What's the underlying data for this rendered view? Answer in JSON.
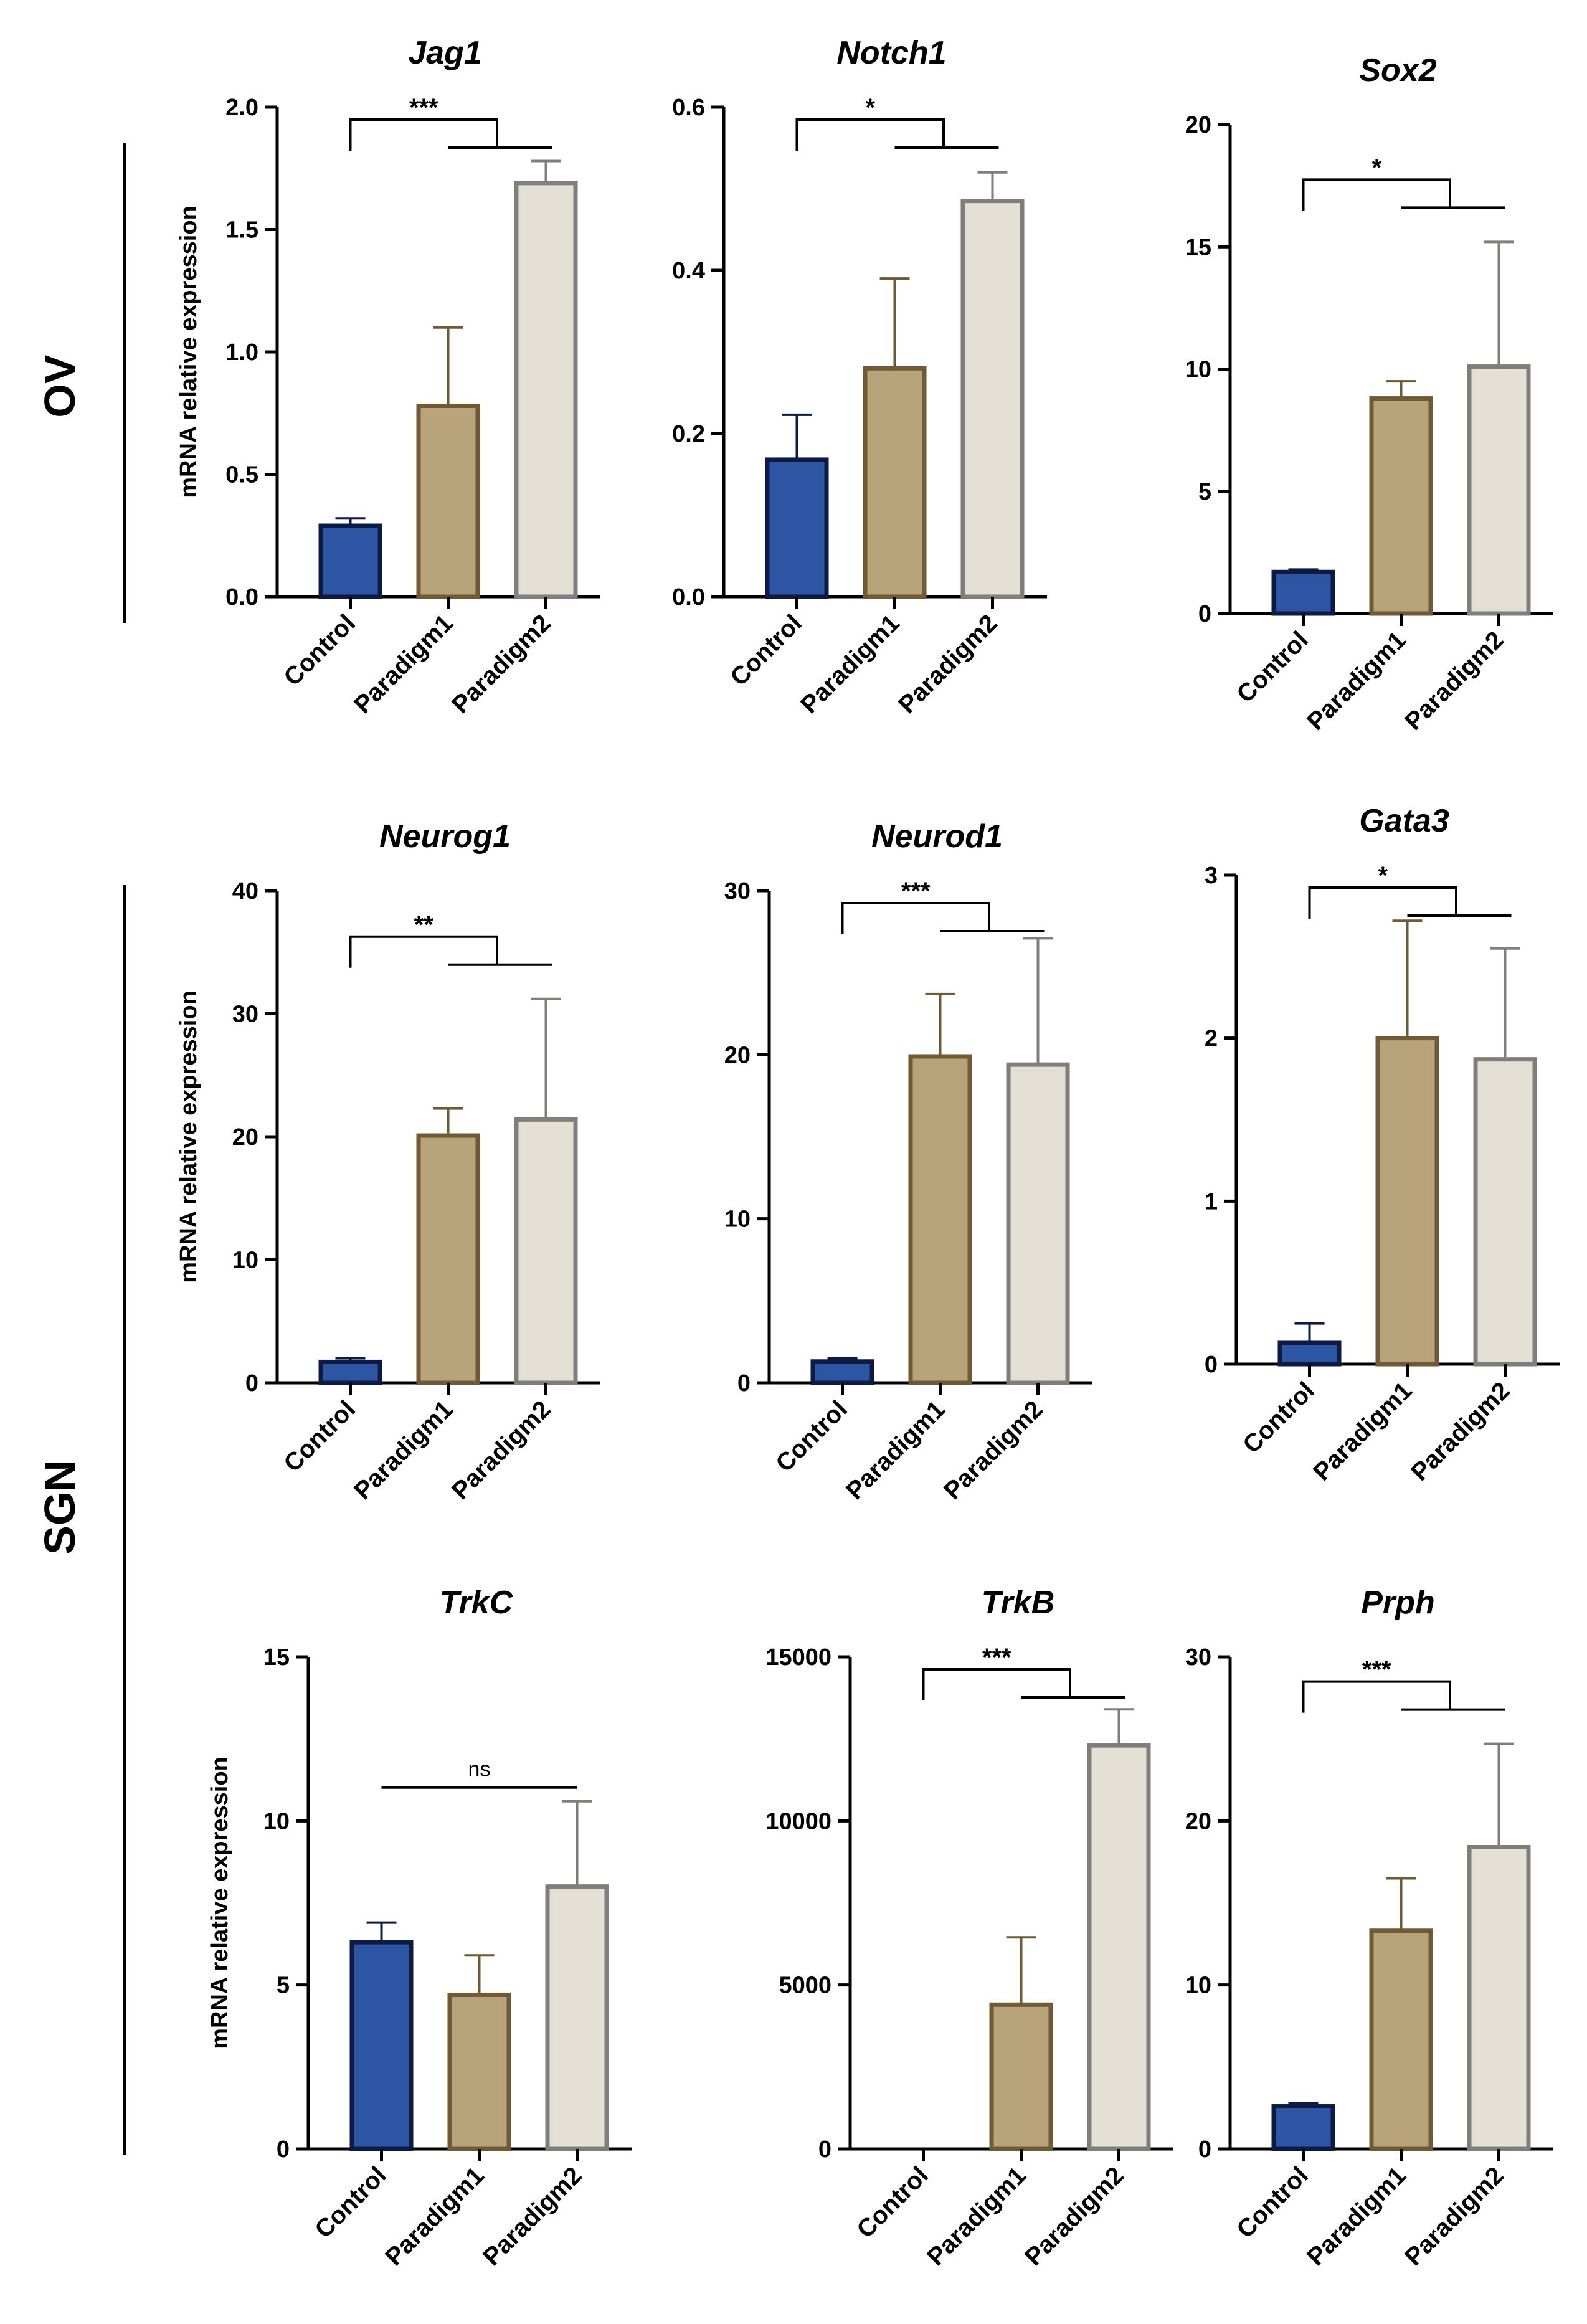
{
  "groups": [
    {
      "label": "OV"
    },
    {
      "label": "SGN"
    }
  ],
  "colors": {
    "control_fill": "#2c56a3",
    "control_stroke": "#0c1a44",
    "paradigm1_fill": "#b8a37a",
    "paradigm1_stroke": "#6e5a34",
    "paradigm2_fill": "#e4e0d6",
    "paradigm2_stroke": "#7f7e7a"
  },
  "chart_data": [
    {
      "type": "bar",
      "title": "Jag1",
      "group": "OV",
      "ylabel": "mRNA relative expression",
      "categories": [
        "Control",
        "Paradigm1",
        "Paradigm2"
      ],
      "values": [
        0.29,
        0.78,
        1.69
      ],
      "errors": [
        0.03,
        0.32,
        0.09
      ],
      "ylim": [
        0,
        2.0
      ],
      "yticks": [
        0.0,
        0.5,
        1.0,
        1.5,
        2.0
      ],
      "ytick_labels": [
        "0.0",
        "0.5",
        "1.0",
        "1.5",
        "2.0"
      ],
      "significance": "***",
      "comparison": "Control vs Paradigm1/Paradigm2"
    },
    {
      "type": "bar",
      "title": "Notch1",
      "group": "OV",
      "ylabel": "",
      "categories": [
        "Control",
        "Paradigm1",
        "Paradigm2"
      ],
      "values": [
        0.168,
        0.28,
        0.485
      ],
      "errors": [
        0.055,
        0.11,
        0.035
      ],
      "ylim": [
        0,
        0.6
      ],
      "yticks": [
        0.0,
        0.2,
        0.4,
        0.6
      ],
      "ytick_labels": [
        "0.0",
        "0.2",
        "0.4",
        "0.6"
      ],
      "significance": "*",
      "comparison": "Control vs Paradigm1/Paradigm2"
    },
    {
      "type": "bar",
      "title": "Sox2",
      "group": "OV",
      "ylabel": "",
      "categories": [
        "Control",
        "Paradigm1",
        "Paradigm2"
      ],
      "values": [
        1.7,
        8.8,
        10.1
      ],
      "errors": [
        0.1,
        0.7,
        5.1
      ],
      "ylim": [
        0,
        20
      ],
      "yticks": [
        0,
        5,
        10,
        15,
        20
      ],
      "ytick_labels": [
        "0",
        "5",
        "10",
        "15",
        "20"
      ],
      "significance": "*",
      "comparison": "Control vs Paradigm1/Paradigm2"
    },
    {
      "type": "bar",
      "title": "Neurog1",
      "group": "SGN",
      "ylabel": "mRNA relative expression",
      "categories": [
        "Control",
        "Paradigm1",
        "Paradigm2"
      ],
      "values": [
        1.7,
        20.1,
        21.4
      ],
      "errors": [
        0.3,
        2.2,
        9.8
      ],
      "ylim": [
        0,
        40
      ],
      "yticks": [
        0,
        10,
        20,
        30,
        40
      ],
      "ytick_labels": [
        "0",
        "10",
        "20",
        "30",
        "40"
      ],
      "significance": "**",
      "comparison": "Control vs Paradigm1/Paradigm2"
    },
    {
      "type": "bar",
      "title": "Neurod1",
      "group": "SGN",
      "ylabel": "",
      "categories": [
        "Control",
        "Paradigm1",
        "Paradigm2"
      ],
      "values": [
        1.3,
        19.9,
        19.4
      ],
      "errors": [
        0.2,
        3.8,
        7.7
      ],
      "ylim": [
        0,
        30
      ],
      "yticks": [
        0,
        10,
        20,
        30
      ],
      "ytick_labels": [
        "0",
        "10",
        "20",
        "30"
      ],
      "significance": "***",
      "comparison": "Control vs Paradigm1/Paradigm2"
    },
    {
      "type": "bar",
      "title": "Gata3",
      "group": "SGN",
      "ylabel": "",
      "categories": [
        "Control",
        "Paradigm1",
        "Paradigm2"
      ],
      "values": [
        0.13,
        2.0,
        1.87
      ],
      "errors": [
        0.12,
        0.72,
        0.68
      ],
      "ylim": [
        0,
        3
      ],
      "yticks": [
        0,
        1,
        2,
        3
      ],
      "ytick_labels": [
        "0",
        "1",
        "2",
        "3"
      ],
      "significance": "*",
      "comparison": "Control vs Paradigm1/Paradigm2"
    },
    {
      "type": "bar",
      "title": "TrkC",
      "group": "SGN",
      "ylabel": "mRNA relative expression",
      "categories": [
        "Control",
        "Paradigm1",
        "Paradigm2"
      ],
      "values": [
        6.3,
        4.7,
        8.0
      ],
      "errors": [
        0.6,
        1.2,
        2.6
      ],
      "ylim": [
        0,
        15
      ],
      "yticks": [
        0,
        5,
        10,
        15
      ],
      "ytick_labels": [
        "0",
        "5",
        "10",
        "15"
      ],
      "significance": "ns",
      "comparison": "Control vs Paradigm2"
    },
    {
      "type": "bar",
      "title": "TrkB",
      "group": "SGN",
      "ylabel": "",
      "categories": [
        "Control",
        "Paradigm1",
        "Paradigm2"
      ],
      "values": [
        0,
        4400,
        12300
      ],
      "errors": [
        0,
        2050,
        1100
      ],
      "ylim": [
        0,
        15000
      ],
      "yticks": [
        0,
        5000,
        10000,
        15000
      ],
      "ytick_labels": [
        "0",
        "5000",
        "10000",
        "15000"
      ],
      "significance": "***",
      "comparison": "Control vs Paradigm1/Paradigm2"
    },
    {
      "type": "bar",
      "title": "Prph",
      "group": "SGN",
      "ylabel": "",
      "categories": [
        "Control",
        "Paradigm1",
        "Paradigm2"
      ],
      "values": [
        2.6,
        13.3,
        18.4
      ],
      "errors": [
        0.2,
        3.2,
        6.3
      ],
      "ylim": [
        0,
        30
      ],
      "yticks": [
        0,
        10,
        20,
        30
      ],
      "ytick_labels": [
        "0",
        "10",
        "20",
        "30"
      ],
      "significance": "***",
      "comparison": "Control vs Paradigm1/Paradigm2"
    }
  ]
}
